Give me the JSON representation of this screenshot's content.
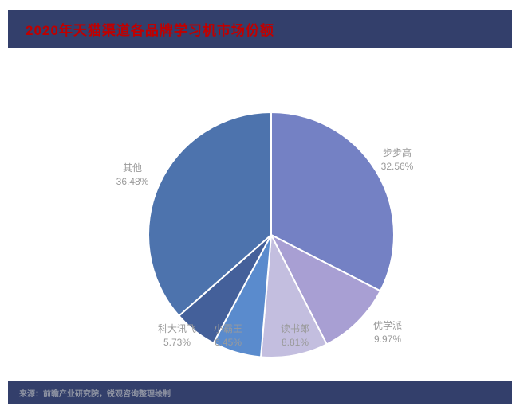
{
  "header": {
    "title": "2020年天猫渠道各品牌学习机市场份额"
  },
  "footer": {
    "source": "来源：前瞻产业研究院，锐观咨询整理绘制"
  },
  "colors": {
    "bar_navy": "#333f6b",
    "title_red": "#c00000",
    "label_gray": "#9a9a9a",
    "slice_border": "#ffffff"
  },
  "chart_data": {
    "type": "pie",
    "title": "2020年天猫渠道各品牌学习机市场份额",
    "unit": "%",
    "start_angle_deg": -90,
    "direction": "clockwise",
    "legend": "none",
    "slices": [
      {
        "id": "bubugao",
        "name": "步步高",
        "value": 32.56,
        "label": "32.56%",
        "color": "#7481c4"
      },
      {
        "id": "youxuepai",
        "name": "优学派",
        "value": 9.97,
        "label": "9.97%",
        "color": "#a89fd3"
      },
      {
        "id": "dushulang",
        "name": "读书郎",
        "value": 8.81,
        "label": "8.81%",
        "color": "#c3bedf"
      },
      {
        "id": "xiaobawang",
        "name": "小霸王",
        "value": 6.45,
        "label": "6.45%",
        "color": "#5a8bcd"
      },
      {
        "id": "kedaxunfei",
        "name": "科大讯飞",
        "value": 5.73,
        "label": "5.73%",
        "color": "#44609a"
      },
      {
        "id": "qita",
        "name": "其他",
        "value": 36.48,
        "label": "36.48%",
        "color": "#4d73ad"
      }
    ]
  }
}
